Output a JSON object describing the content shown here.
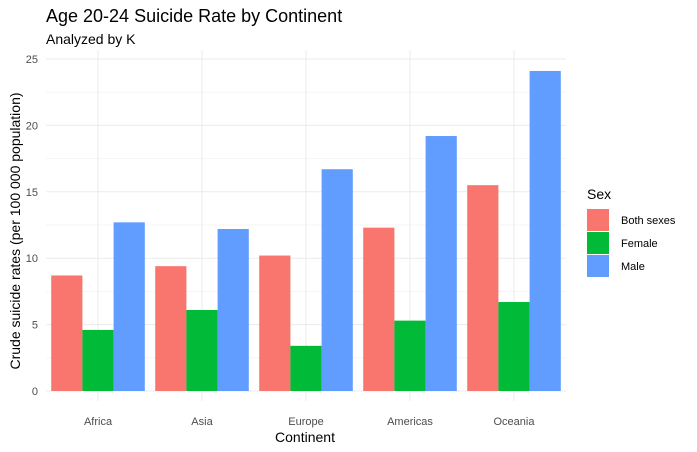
{
  "chart_data": {
    "type": "bar",
    "title": "Age 20-24 Suicide Rate by Continent",
    "subtitle": "Analyzed by K",
    "xlabel": "Continent",
    "ylabel": "Crude suicide rates (per 100 000 population)",
    "categories": [
      "Africa",
      "Asia",
      "Europe",
      "Americas",
      "Oceania"
    ],
    "series": [
      {
        "name": "Both sexes",
        "color": "#F8766D",
        "values": [
          8.7,
          9.4,
          10.2,
          12.3,
          15.5
        ]
      },
      {
        "name": "Female",
        "color": "#00BA38",
        "values": [
          4.6,
          6.1,
          3.4,
          5.3,
          6.7
        ]
      },
      {
        "name": "Male",
        "color": "#619CFF",
        "values": [
          12.7,
          12.2,
          16.7,
          19.2,
          24.1
        ]
      }
    ],
    "ylim": [
      0,
      25
    ],
    "yticks": [
      0,
      5,
      10,
      15,
      20,
      25
    ],
    "grid": true,
    "legend": {
      "title": "Sex",
      "position": "right"
    }
  }
}
